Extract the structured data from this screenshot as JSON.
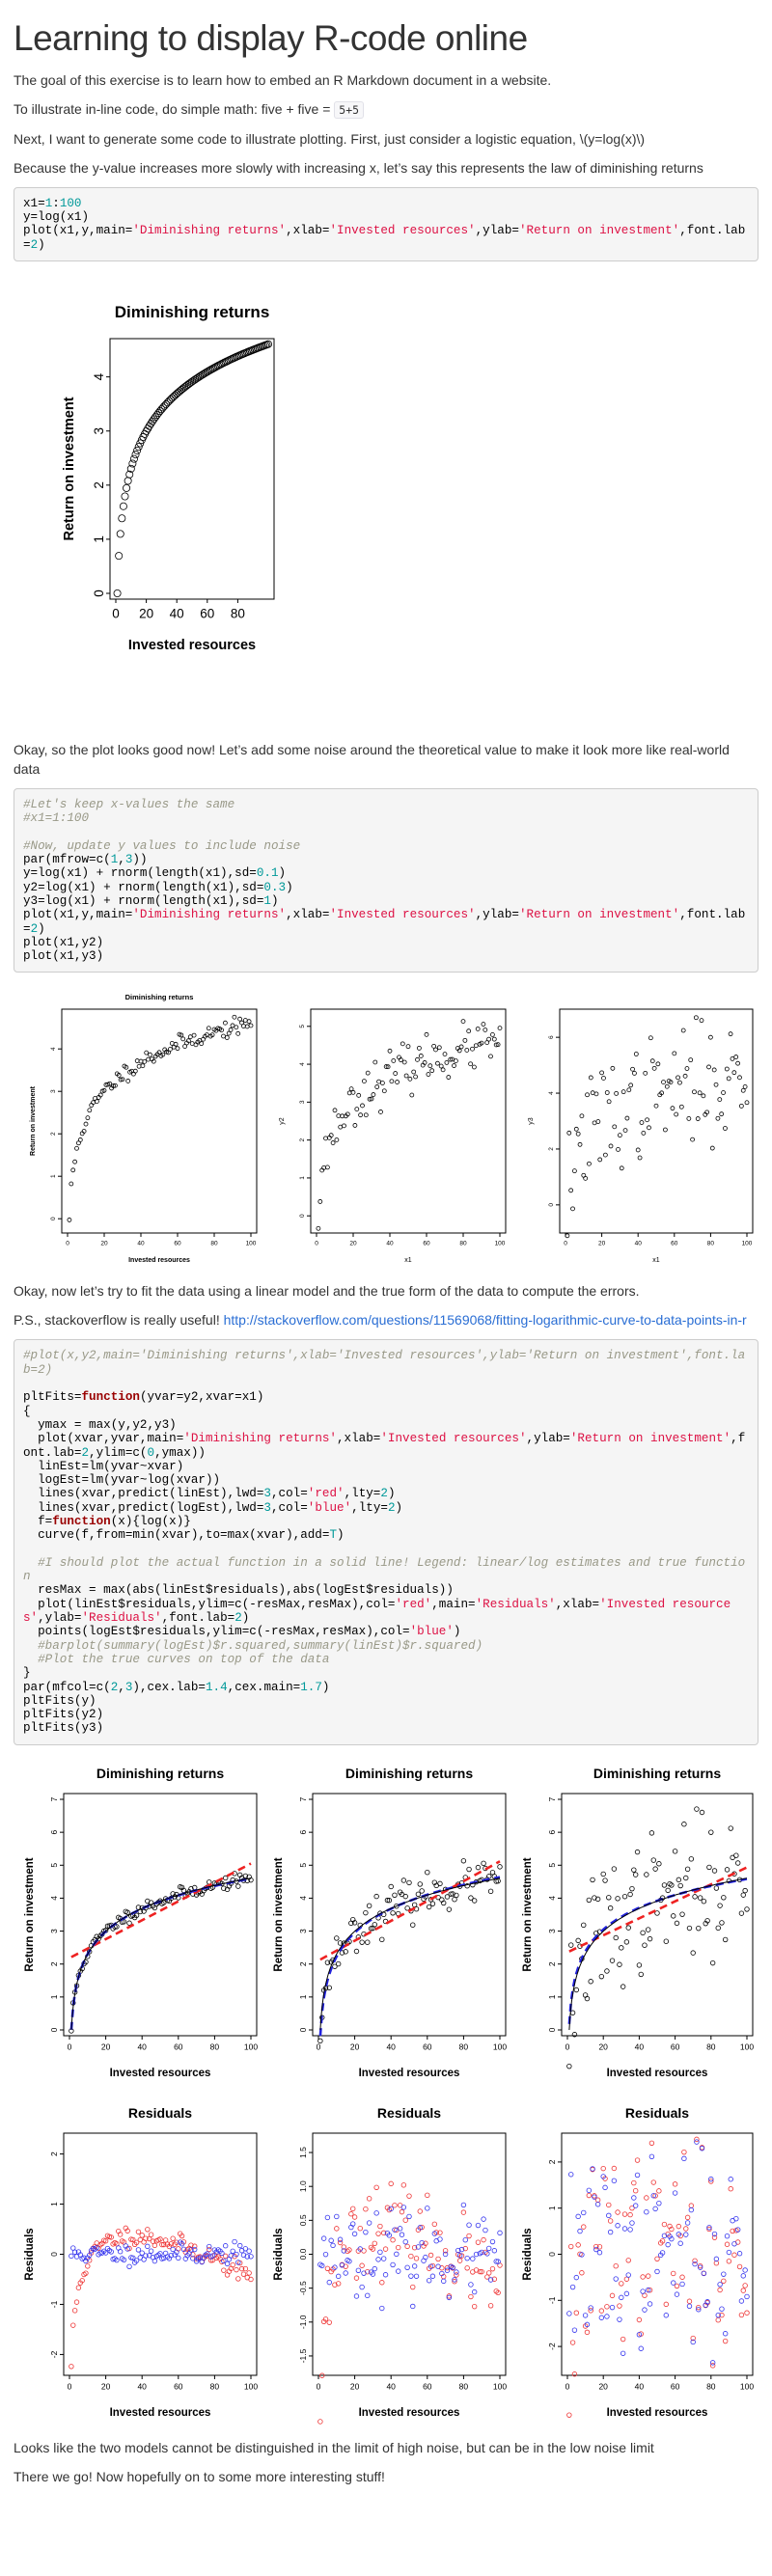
{
  "title": "Learning to display R-code online",
  "para1": "The goal of this exercise is to learn how to embed an R Markdown document in a website.",
  "para2_pre": "To illustrate in-line code, do simple math: five + five = ",
  "para2_code": "5+5",
  "para3": "Next, I want to generate some code to illustrate plotting. First, just consider a logistic equation, \\(y=log(x)\\)",
  "para4": "Because the y-value increases more slowly with increasing x, let’s say this represents the law of diminishing returns",
  "para5": "Okay, so the plot looks good now! Let’s add some noise around the theoretical value to make it look more like real-world data",
  "para6": "Okay, now let’s try to fit the data using a linear model and the true form of the data to compute the errors.",
  "para7_pre": "P.S., stackoverflow is really useful! ",
  "para7_link": "http://stackoverflow.com/questions/11569068/fitting-logarithmic-curve-to-data-points-in-r",
  "para8": "Looks like the two models cannot be distinguished in the limit of high noise, but can be in the low noise limit",
  "para9": "There we go! Now hopefully on to some more interesting stuff!",
  "code1": [
    "x1=1:100",
    "y=log(x1)",
    "plot(x1,y,main='Diminishing returns',xlab='Invested resources',ylab='Return on investment',font.lab=2)"
  ],
  "code2": [
    "#Let's keep x-values the same",
    "#x1=1:100",
    "",
    "#Now, update y values to include noise",
    "par(mfrow=c(1,3))",
    "y=log(x1) + rnorm(length(x1),sd=0.1)",
    "y2=log(x1) + rnorm(length(x1),sd=0.3)",
    "y3=log(x1) + rnorm(length(x1),sd=1)",
    "plot(x1,y,main='Diminishing returns',xlab='Invested resources',ylab='Return on investment',font.lab=2)",
    "plot(x1,y2)",
    "plot(x1,y3)"
  ],
  "code3": [
    "#plot(x,y2,main='Diminishing returns',xlab='Invested resources',ylab='Return on investment',font.lab=2)",
    "",
    "pltFits=function(yvar=y2,xvar=x1)",
    "{",
    "  ymax = max(y,y2,y3)",
    "  plot(xvar,yvar,main='Diminishing returns',xlab='Invested resources',ylab='Return on investment',font.lab=2,ylim=c(0,ymax))",
    "  linEst=lm(yvar~xvar)",
    "  logEst=lm(yvar~log(xvar))",
    "  lines(xvar,predict(linEst),lwd=3,col='red',lty=2)",
    "  lines(xvar,predict(logEst),lwd=3,col='blue',lty=2)",
    "  f=function(x){log(x)}",
    "  curve(f,from=min(xvar),to=max(xvar),add=T)",
    "",
    "  #I should plot the actual function in a solid line! Legend: linear/log estimates and true function",
    "  resMax = max(abs(linEst$residuals),abs(logEst$residuals))",
    "  plot(linEst$residuals,ylim=c(-resMax,resMax),col='red',main='Residuals',xlab='Invested resources',ylab='Residuals',font.lab=2)",
    "  points(logEst$residuals,ylim=c(-resMax,resMax),col='blue')",
    "  #barplot(summary(logEst)$r.squared,summary(linEst)$r.squared)",
    "  #Plot the true curves on top of the data",
    "}",
    "par(mfcol=c(2,3),cex.lab=1.4,cex.main=1.7)",
    "pltFits(y)",
    "pltFits(y2)",
    "pltFits(y3)"
  ],
  "chart_data": [
    {
      "id": "single",
      "type": "scatter",
      "title": "Diminishing returns",
      "xlabel": "Invested resources",
      "ylabel": "Return on investment",
      "xlim": [
        0,
        100
      ],
      "ylim": [
        0,
        4.6
      ],
      "xticks": [
        0,
        20,
        40,
        60,
        80
      ],
      "yticks": [
        0,
        1,
        2,
        3,
        4
      ],
      "noise_sd": 0,
      "x_range": [
        1,
        100
      ]
    },
    {
      "id": "noise1",
      "type": "scatter",
      "title": "Diminishing returns",
      "xlabel": "Invested resources",
      "ylabel": "Return on investment",
      "xlim": [
        0,
        100
      ],
      "ylim": [
        -0.2,
        4.8
      ],
      "xticks": [
        0,
        20,
        40,
        60,
        80,
        100
      ],
      "yticks": [
        0,
        1,
        2,
        3,
        4
      ],
      "noise_sd": 0.1,
      "x_range": [
        1,
        100
      ]
    },
    {
      "id": "noise2",
      "type": "scatter",
      "title": "",
      "xlabel": "x1",
      "ylabel": "y2",
      "xlim": [
        0,
        100
      ],
      "ylim": [
        -0.3,
        5.3
      ],
      "xticks": [
        0,
        20,
        40,
        60,
        80,
        100
      ],
      "yticks": [
        0,
        1,
        2,
        3,
        4,
        5
      ],
      "noise_sd": 0.3,
      "x_range": [
        1,
        100
      ]
    },
    {
      "id": "noise3",
      "type": "scatter",
      "title": "",
      "xlabel": "x1",
      "ylabel": "y3",
      "xlim": [
        0,
        100
      ],
      "ylim": [
        -0.8,
        6.8
      ],
      "xticks": [
        0,
        20,
        40,
        60,
        80,
        100
      ],
      "yticks": [
        0,
        2,
        4,
        6
      ],
      "noise_sd": 1.0,
      "x_range": [
        1,
        100
      ]
    },
    {
      "id": "fit1",
      "type": "scatter",
      "title": "Diminishing returns",
      "xlabel": "Invested resources",
      "ylabel": "Return on investment",
      "xlim": [
        0,
        100
      ],
      "ylim": [
        0,
        7
      ],
      "xticks": [
        0,
        20,
        40,
        60,
        80,
        100
      ],
      "yticks": [
        0,
        1,
        2,
        3,
        4,
        5,
        6,
        7
      ],
      "noise_sd": 0.1,
      "x_range": [
        1,
        100
      ],
      "fits": true
    },
    {
      "id": "fit2",
      "type": "scatter",
      "title": "Diminishing returns",
      "xlabel": "Invested resources",
      "ylabel": "Return on investment",
      "xlim": [
        0,
        100
      ],
      "ylim": [
        0,
        7
      ],
      "xticks": [
        0,
        20,
        40,
        60,
        80,
        100
      ],
      "yticks": [
        0,
        1,
        2,
        3,
        4,
        5,
        6,
        7
      ],
      "noise_sd": 0.3,
      "x_range": [
        1,
        100
      ],
      "fits": true
    },
    {
      "id": "fit3",
      "type": "scatter",
      "title": "Diminishing returns",
      "xlabel": "Invested resources",
      "ylabel": "Return on investment",
      "xlim": [
        0,
        100
      ],
      "ylim": [
        0,
        7
      ],
      "xticks": [
        0,
        20,
        40,
        60,
        80,
        100
      ],
      "yticks": [
        0,
        1,
        2,
        3,
        4,
        5,
        6,
        7
      ],
      "noise_sd": 1.0,
      "x_range": [
        1,
        100
      ],
      "fits": true
    },
    {
      "id": "res1",
      "type": "scatter",
      "title": "Residuals",
      "xlabel": "Invested resources",
      "ylabel": "Residuals",
      "xlim": [
        0,
        100
      ],
      "ylim": [
        -2.3,
        2.3
      ],
      "xticks": [
        0,
        20,
        40,
        60,
        80,
        100
      ],
      "yticks": [
        -2,
        -1,
        0,
        1,
        2
      ],
      "noise_sd": 0.1,
      "residuals": true
    },
    {
      "id": "res2",
      "type": "scatter",
      "title": "Residuals",
      "xlabel": "Invested resources",
      "ylabel": "Residuals",
      "xlim": [
        0,
        100
      ],
      "ylim": [
        -1.7,
        1.7
      ],
      "xticks": [
        0,
        20,
        40,
        60,
        80,
        100
      ],
      "yticks": [
        -1.5,
        -1.0,
        -0.5,
        0.0,
        0.5,
        1.0,
        1.5
      ],
      "noise_sd": 0.3,
      "residuals": true
    },
    {
      "id": "res3",
      "type": "scatter",
      "title": "Residuals",
      "xlabel": "Invested resources",
      "ylabel": "Residuals",
      "xlim": [
        0,
        100
      ],
      "ylim": [
        -2.5,
        2.5
      ],
      "xticks": [
        0,
        20,
        40,
        60,
        80,
        100
      ],
      "yticks": [
        -2,
        -1,
        0,
        1,
        2
      ],
      "noise_sd": 1.0,
      "residuals": true
    }
  ]
}
